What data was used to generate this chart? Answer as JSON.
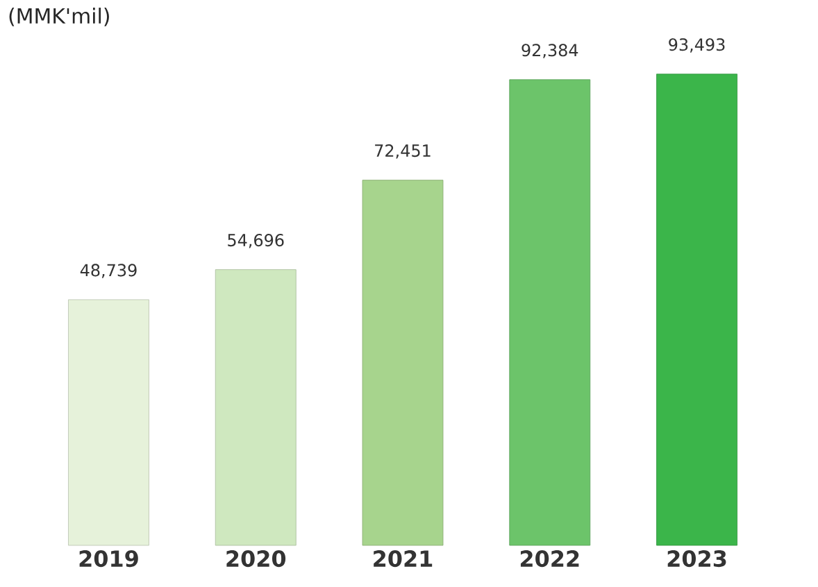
{
  "chart_data": {
    "type": "bar",
    "title": "(MMK'mil)",
    "categories": [
      "2019",
      "2020",
      "2021",
      "2022",
      "2023"
    ],
    "values": [
      48739,
      54696,
      72451,
      92384,
      93493
    ],
    "colors": [
      "#e6f2da",
      "#cfe8bf",
      "#a7d48d",
      "#6cc46a",
      "#3bb54a"
    ],
    "value_labels": [
      "48,739",
      "54,696",
      "72,451",
      "92,384",
      "93,493"
    ]
  }
}
